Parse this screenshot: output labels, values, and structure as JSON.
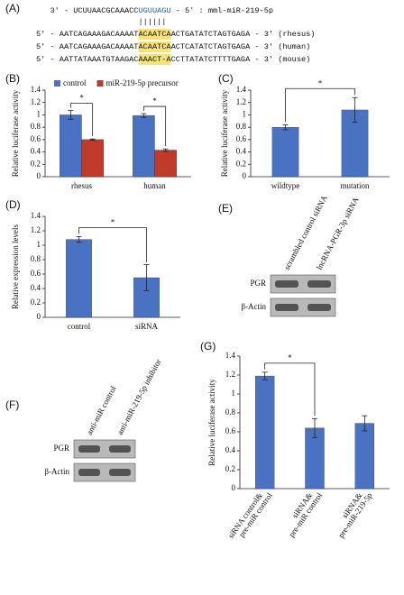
{
  "sequence_panel": {
    "label": "(A)",
    "mirna": {
      "prefix": "3' - UCUUAACGCAAACC",
      "seed": "UGUUAGU",
      "suffix": " - 5' : mml-miR-219-5p"
    },
    "pairing": "||||||",
    "targets": [
      {
        "prefix": "5' - AATCAGAAAGACAAAAT",
        "site": "ACAATCA",
        "suffix": "ACTGATATCTAGTGAGA - 3' (rhesus)"
      },
      {
        "prefix": "5' - AATCAGAAAGACAAAAT",
        "site": "ACAATCA",
        "suffix": "ACTCATATCTAGTGAGA - 3' (human)"
      },
      {
        "prefix": "5' - AATTATAAATGTAAGAC",
        "site": "AAACT-A",
        "suffix": "CCTTATATCTTTTGAGA - 3' (mouse)"
      }
    ]
  },
  "blots": [
    {
      "panel": "(E)",
      "lanes": [
        "scrambled control siRNA",
        "lncRNA-PGR-3p siRNA"
      ],
      "rows": [
        "PGR",
        "β-Actin"
      ]
    },
    {
      "panel": "(F)",
      "lanes": [
        "anti-miR control",
        "anti-miR-219-5p inhibitor"
      ],
      "rows": [
        "PGR",
        "β-Actin"
      ]
    }
  ],
  "chart_data": [
    {
      "type": "bar",
      "panel": "(B)",
      "ylabel": "Relative luciferase activity",
      "categories": [
        "rhesus",
        "human"
      ],
      "series": [
        {
          "name": "control",
          "color": "#4a72c2",
          "values": [
            1.0,
            0.99
          ],
          "errors": [
            0.07,
            0.03
          ]
        },
        {
          "name": "miR-219-5p precursor",
          "color": "#c0392b",
          "values": [
            0.6,
            0.43
          ],
          "errors": [
            0.01,
            0.02
          ]
        }
      ],
      "ylim": [
        0,
        1.4
      ],
      "yticks": [
        0,
        0.2,
        0.4,
        0.6,
        0.8,
        1,
        1.2,
        1.4
      ],
      "legend": "top",
      "annotations": [
        "*",
        "*"
      ]
    },
    {
      "type": "bar",
      "panel": "(C)",
      "ylabel": "Relative luciferase activity",
      "categories": [
        "wildtype",
        "mutation"
      ],
      "series": [
        {
          "color": "#4a72c2",
          "values": [
            0.8,
            1.08
          ],
          "errors": [
            0.04,
            0.2
          ]
        }
      ],
      "ylim": [
        0,
        1.4
      ],
      "yticks": [
        0,
        0.2,
        0.4,
        0.6,
        0.8,
        1,
        1.2,
        1.4
      ],
      "annotations": [
        "*"
      ]
    },
    {
      "type": "bar",
      "panel": "(D)",
      "ylabel": "Relative expression levels",
      "categories": [
        "control",
        "siRNA"
      ],
      "series": [
        {
          "color": "#4a72c2",
          "values": [
            1.08,
            0.55
          ],
          "errors": [
            0.04,
            0.18
          ]
        }
      ],
      "ylim": [
        0,
        1.4
      ],
      "yticks": [
        0,
        0.2,
        0.4,
        0.6,
        0.8,
        1,
        1.2,
        1.4
      ],
      "annotations": [
        "*"
      ]
    },
    {
      "type": "bar",
      "panel": "(G)",
      "ylabel": "Relative luciferase activity",
      "categories": [
        [
          "siRNA control&",
          "pre-miR control"
        ],
        [
          "siRNA&",
          "pre-miR control"
        ],
        [
          "siRNA&",
          "pre-miR-219-5p"
        ]
      ],
      "series": [
        {
          "color": "#4a72c2",
          "values": [
            1.19,
            0.64,
            0.69
          ],
          "errors": [
            0.04,
            0.1,
            0.08
          ]
        }
      ],
      "ylim": [
        0,
        1.4
      ],
      "yticks": [
        0,
        0.2,
        0.4,
        0.6,
        0.8,
        1,
        1.2,
        1.4
      ],
      "annotations": [
        "*"
      ]
    }
  ]
}
